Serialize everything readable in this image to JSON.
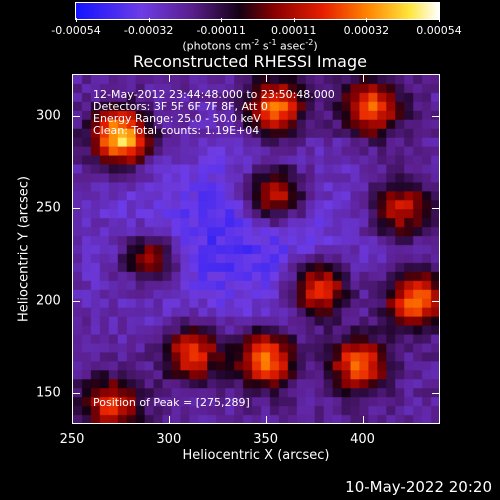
{
  "colorbar": {
    "ticks": [
      "-0.00054",
      "-0.00032",
      "-0.00011",
      "0.00011",
      "0.00032",
      "0.00054"
    ],
    "unit_base": "(photons cm",
    "unit_exp1": "-2",
    "unit_mid": " s",
    "unit_exp2": "-1",
    "unit_mid2": " asec",
    "unit_exp3": "-2",
    "unit_end": ")"
  },
  "title": "Reconstructed RHESSI Image",
  "annotations": {
    "time": "12-May-2012 23:44:48.000 to 23:50:48.000",
    "detectors": "Detectors: 3F 5F 6F 7F 8F, Att 0",
    "energy": "Energy Range: 25.0 - 50.0 keV",
    "clean": "Clean: Total counts: 1.19E+04",
    "peak": "Position of Peak = [275,289]"
  },
  "footer_date": "10-May-2022 20:20",
  "chart_data": {
    "type": "heatmap",
    "title": "Reconstructed RHESSI Image",
    "xlabel": "Heliocentric X (arcsec)",
    "ylabel": "Heliocentric Y (arcsec)",
    "xlim": [
      250,
      440
    ],
    "ylim": [
      133,
      323
    ],
    "xticks": [
      250,
      300,
      350,
      400
    ],
    "yticks": [
      150,
      200,
      250,
      300
    ],
    "colorbar_range": [
      -0.00054,
      0.00054
    ],
    "colormap": "rainbow/hot (blue-purple-red-orange-yellow-white)",
    "peak_position": [
      275,
      289
    ],
    "hot_spots": [
      {
        "x": 275,
        "y": 289,
        "level": 1.0
      },
      {
        "x": 355,
        "y": 305,
        "level": 0.75
      },
      {
        "x": 405,
        "y": 305,
        "level": 0.7
      },
      {
        "x": 355,
        "y": 258,
        "level": 0.7
      },
      {
        "x": 290,
        "y": 223,
        "level": 0.55
      },
      {
        "x": 378,
        "y": 206,
        "level": 0.7
      },
      {
        "x": 428,
        "y": 200,
        "level": 0.75
      },
      {
        "x": 312,
        "y": 171,
        "level": 0.65
      },
      {
        "x": 350,
        "y": 168,
        "level": 0.8
      },
      {
        "x": 398,
        "y": 165,
        "level": 0.7
      },
      {
        "x": 270,
        "y": 142,
        "level": 0.6
      },
      {
        "x": 420,
        "y": 250,
        "level": 0.55
      }
    ]
  }
}
